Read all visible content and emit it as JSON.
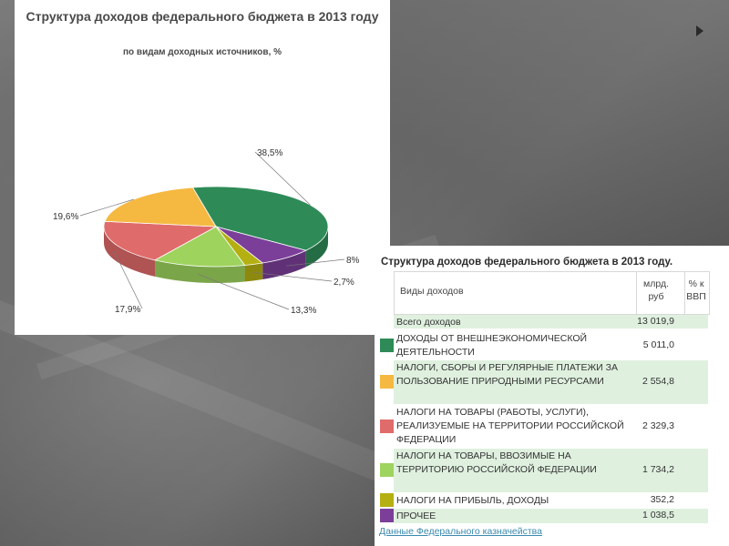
{
  "chart_data": {
    "type": "pie",
    "title": "Структура доходов федерального бюджета в 2013 году",
    "subtitle": "по видам доходных источников, %",
    "slices": [
      {
        "label": "38,5%",
        "value": 38.5,
        "color": "#2e8b57"
      },
      {
        "label": "8%",
        "value": 8.0,
        "color": "#7b3f99"
      },
      {
        "label": "2,7%",
        "value": 2.7,
        "color": "#b5b012"
      },
      {
        "label": "13,3%",
        "value": 13.3,
        "color": "#9ed35e"
      },
      {
        "label": "17,9%",
        "value": 17.9,
        "color": "#e06b6b"
      },
      {
        "label": "19,6%",
        "value": 19.6,
        "color": "#f5b942"
      }
    ]
  },
  "table": {
    "title": "Структура доходов федерального бюджета в 2013 году.",
    "headers": {
      "name": "Виды доходов",
      "unit_line1": "млрд.",
      "unit_line2": "руб",
      "pct_line1": "% к",
      "pct_line2": "ВВП"
    },
    "total": {
      "name": "Всего доходов",
      "value": "13 019,9"
    },
    "rows": [
      {
        "name": "Доходы от внешнеэкономической деятельности",
        "value": "5 011,0",
        "color": "#2e8b57"
      },
      {
        "name": "Налоги, сборы и регулярные платежи за пользование природными ресурсами",
        "value": "2 554,8",
        "color": "#f5b942"
      },
      {
        "name": "Налоги на товары (работы, услуги), реализуемые на территории Российской Федерации",
        "value": "2 329,3",
        "color": "#e06b6b"
      },
      {
        "name": "Налоги на товары, ввозимые на территорию Российской Федерации",
        "value": "1 734,2",
        "color": "#9ed35e"
      },
      {
        "name": "Налоги на прибыль, доходы",
        "value": "352,2",
        "color": "#b5b012"
      },
      {
        "name": "Прочее",
        "value": "1 038,5",
        "color": "#7b3f99"
      }
    ],
    "source": "Данные Федерального казначейства"
  }
}
